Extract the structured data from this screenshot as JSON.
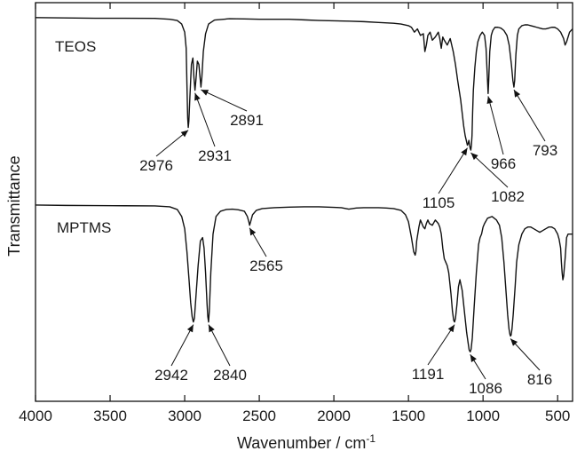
{
  "chart_data": {
    "type": "line",
    "xlabel": "Wavenumber / cm",
    "xlabel_superscript": "-1",
    "ylabel": "Transmittance",
    "xlim": [
      4000,
      400
    ],
    "x_reversed": true,
    "xticks": [
      4000,
      3500,
      3000,
      2500,
      2000,
      1500,
      1000,
      500
    ],
    "yticks_shown": false,
    "grid": false,
    "series": [
      {
        "name": "TEOS",
        "x": [
          4000,
          3800,
          3600,
          3400,
          3200,
          3100,
          3050,
          3020,
          3000,
          2990,
          2985,
          2980,
          2976,
          2972,
          2965,
          2955,
          2945,
          2938,
          2931,
          2925,
          2915,
          2905,
          2897,
          2891,
          2885,
          2875,
          2860,
          2840,
          2800,
          2700,
          2600,
          2500,
          2400,
          2300,
          2200,
          2100,
          2000,
          1900,
          1800,
          1700,
          1600,
          1550,
          1500,
          1480,
          1460,
          1440,
          1420,
          1400,
          1390,
          1380,
          1370,
          1355,
          1340,
          1320,
          1300,
          1290,
          1280,
          1270,
          1260,
          1240,
          1220,
          1200,
          1185,
          1170,
          1160,
          1150,
          1140,
          1130,
          1120,
          1110,
          1105,
          1100,
          1095,
          1090,
          1086,
          1082,
          1078,
          1074,
          1070,
          1065,
          1055,
          1045,
          1035,
          1020,
          1005,
          990,
          980,
          970,
          966,
          962,
          955,
          945,
          935,
          920,
          900,
          880,
          860,
          840,
          825,
          810,
          800,
          793,
          788,
          780,
          770,
          760,
          740,
          720,
          700,
          680,
          660,
          640,
          620,
          600,
          580,
          560,
          540,
          520,
          500,
          480,
          470,
          460,
          450,
          440,
          420,
          400
        ],
        "y": [
          0.99,
          0.988,
          0.986,
          0.986,
          0.985,
          0.98,
          0.972,
          0.95,
          0.9,
          0.8,
          0.58,
          0.37,
          0.31,
          0.35,
          0.5,
          0.7,
          0.74,
          0.62,
          0.54,
          0.6,
          0.72,
          0.7,
          0.62,
          0.56,
          0.62,
          0.78,
          0.89,
          0.95,
          0.975,
          0.983,
          0.982,
          0.98,
          0.98,
          0.98,
          0.976,
          0.972,
          0.97,
          0.968,
          0.965,
          0.96,
          0.955,
          0.95,
          0.94,
          0.93,
          0.9,
          0.92,
          0.88,
          0.89,
          0.78,
          0.82,
          0.88,
          0.9,
          0.85,
          0.87,
          0.9,
          0.86,
          0.8,
          0.87,
          0.85,
          0.82,
          0.86,
          0.78,
          0.7,
          0.6,
          0.54,
          0.48,
          0.4,
          0.32,
          0.26,
          0.22,
          0.2,
          0.21,
          0.23,
          0.2,
          0.18,
          0.17,
          0.2,
          0.26,
          0.4,
          0.54,
          0.68,
          0.78,
          0.84,
          0.88,
          0.9,
          0.88,
          0.8,
          0.6,
          0.52,
          0.6,
          0.78,
          0.88,
          0.91,
          0.93,
          0.93,
          0.925,
          0.91,
          0.88,
          0.82,
          0.7,
          0.6,
          0.56,
          0.6,
          0.76,
          0.88,
          0.92,
          0.94,
          0.945,
          0.945,
          0.94,
          0.935,
          0.93,
          0.925,
          0.92,
          0.92,
          0.925,
          0.93,
          0.93,
          0.92,
          0.9,
          0.88,
          0.86,
          0.82,
          0.84,
          0.9,
          0.92
        ]
      },
      {
        "name": "MPTMS",
        "x": [
          4000,
          3800,
          3600,
          3400,
          3200,
          3100,
          3050,
          3020,
          3000,
          2985,
          2970,
          2960,
          2950,
          2942,
          2935,
          2925,
          2910,
          2895,
          2880,
          2870,
          2860,
          2850,
          2845,
          2840,
          2835,
          2825,
          2810,
          2790,
          2760,
          2720,
          2680,
          2640,
          2600,
          2580,
          2570,
          2565,
          2558,
          2545,
          2520,
          2480,
          2400,
          2300,
          2200,
          2100,
          2000,
          1950,
          1900,
          1850,
          1800,
          1700,
          1650,
          1600,
          1550,
          1520,
          1500,
          1480,
          1465,
          1455,
          1450,
          1445,
          1430,
          1420,
          1410,
          1400,
          1390,
          1380,
          1370,
          1360,
          1340,
          1320,
          1300,
          1290,
          1280,
          1270,
          1260,
          1250,
          1240,
          1230,
          1215,
          1205,
          1197,
          1191,
          1185,
          1175,
          1165,
          1155,
          1140,
          1125,
          1110,
          1100,
          1093,
          1086,
          1080,
          1072,
          1060,
          1045,
          1030,
          1020,
          1010,
          1000,
          990,
          970,
          940,
          910,
          890,
          875,
          860,
          845,
          835,
          826,
          820,
          816,
          812,
          806,
          798,
          785,
          775,
          760,
          740,
          720,
          700,
          680,
          660,
          640,
          620,
          600,
          580,
          560,
          540,
          520,
          500,
          490,
          480,
          475,
          470,
          465,
          460,
          450,
          440,
          430,
          420,
          400
        ],
        "y": [
          0.985,
          0.983,
          0.982,
          0.981,
          0.98,
          0.975,
          0.96,
          0.92,
          0.85,
          0.72,
          0.55,
          0.43,
          0.35,
          0.32,
          0.34,
          0.46,
          0.64,
          0.78,
          0.8,
          0.74,
          0.6,
          0.42,
          0.35,
          0.32,
          0.38,
          0.6,
          0.82,
          0.92,
          0.95,
          0.96,
          0.962,
          0.958,
          0.95,
          0.92,
          0.89,
          0.87,
          0.89,
          0.93,
          0.955,
          0.965,
          0.97,
          0.973,
          0.975,
          0.975,
          0.972,
          0.97,
          0.962,
          0.968,
          0.97,
          0.97,
          0.968,
          0.965,
          0.955,
          0.93,
          0.89,
          0.8,
          0.72,
          0.7,
          0.72,
          0.78,
          0.86,
          0.9,
          0.88,
          0.86,
          0.85,
          0.88,
          0.9,
          0.88,
          0.87,
          0.9,
          0.88,
          0.86,
          0.82,
          0.74,
          0.68,
          0.66,
          0.64,
          0.6,
          0.48,
          0.38,
          0.33,
          0.32,
          0.34,
          0.42,
          0.52,
          0.56,
          0.5,
          0.38,
          0.26,
          0.2,
          0.16,
          0.15,
          0.165,
          0.23,
          0.4,
          0.6,
          0.76,
          0.8,
          0.82,
          0.86,
          0.88,
          0.91,
          0.92,
          0.9,
          0.87,
          0.8,
          0.66,
          0.48,
          0.36,
          0.28,
          0.25,
          0.24,
          0.245,
          0.28,
          0.36,
          0.52,
          0.66,
          0.76,
          0.82,
          0.85,
          0.86,
          0.86,
          0.85,
          0.84,
          0.83,
          0.84,
          0.85,
          0.86,
          0.86,
          0.85,
          0.82,
          0.79,
          0.74,
          0.66,
          0.6,
          0.56,
          0.58,
          0.68,
          0.8,
          0.82,
          0.82,
          0.82
        ]
      }
    ],
    "annotations": [
      {
        "series": "TEOS",
        "text": "2976",
        "x": 2976
      },
      {
        "series": "TEOS",
        "text": "2931",
        "x": 2931
      },
      {
        "series": "TEOS",
        "text": "2891",
        "x": 2891
      },
      {
        "series": "TEOS",
        "text": "1105",
        "x": 1105
      },
      {
        "series": "TEOS",
        "text": "1082",
        "x": 1082
      },
      {
        "series": "TEOS",
        "text": "966",
        "x": 966
      },
      {
        "series": "TEOS",
        "text": "793",
        "x": 793
      },
      {
        "series": "MPTMS",
        "text": "2942",
        "x": 2942
      },
      {
        "series": "MPTMS",
        "text": "2840",
        "x": 2840
      },
      {
        "series": "MPTMS",
        "text": "2565",
        "x": 2565
      },
      {
        "series": "MPTMS",
        "text": "1191",
        "x": 1191
      },
      {
        "series": "MPTMS",
        "text": "1086",
        "x": 1086
      },
      {
        "series": "MPTMS",
        "text": "816",
        "x": 816
      }
    ]
  }
}
